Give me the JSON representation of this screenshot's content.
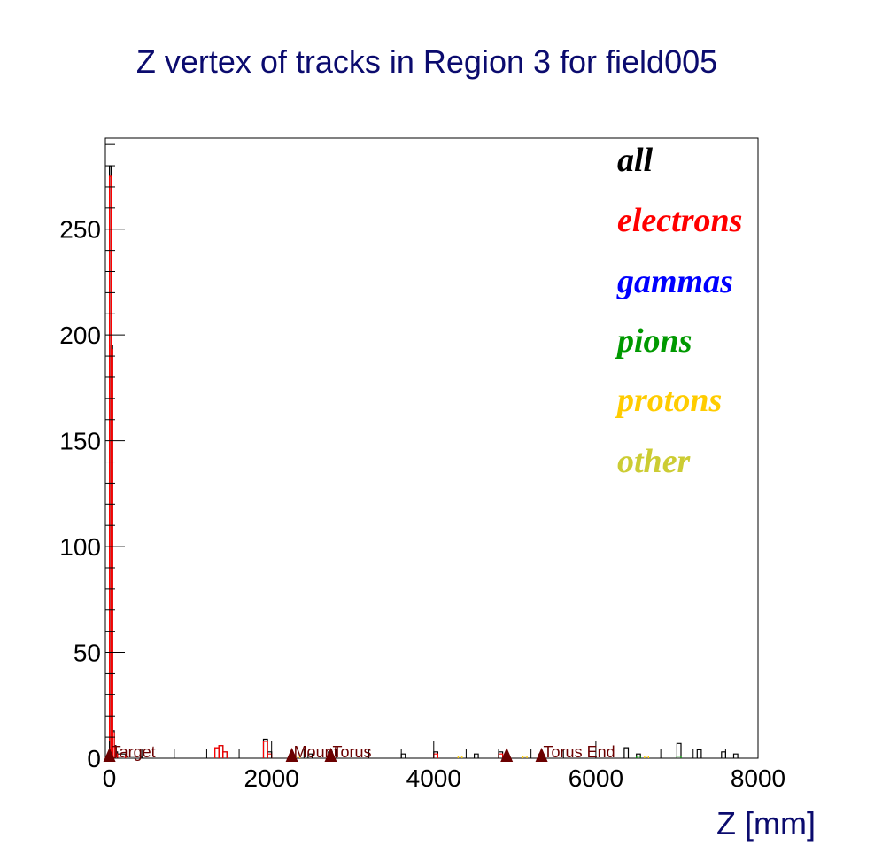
{
  "chart_data": {
    "type": "histogram",
    "title": "Z vertex of tracks in Region 3 for field005",
    "xlabel": "Z [mm]",
    "ylabel": "",
    "xlim": [
      -50,
      8000
    ],
    "ylim": [
      0,
      293
    ],
    "x_ticks": [
      0,
      2000,
      4000,
      6000,
      8000
    ],
    "x_tick_labels": [
      "0",
      "2000",
      "4000",
      "6000",
      "8000"
    ],
    "y_ticks": [
      0,
      50,
      100,
      150,
      200,
      250
    ],
    "y_tick_labels": [
      "0",
      "50",
      "100",
      "150",
      "200",
      "250"
    ],
    "grid": false,
    "legend_position": "top-right",
    "legend": [
      {
        "label": "all",
        "color": "#000000"
      },
      {
        "label": "electrons",
        "color": "#ff0000"
      },
      {
        "label": "gammas",
        "color": "#0000ff"
      },
      {
        "label": "pions",
        "color": "#009900"
      },
      {
        "label": "protons",
        "color": "#ffcc00"
      },
      {
        "label": "other",
        "color": "#cccc33"
      }
    ],
    "series": [
      {
        "name": "all",
        "color": "#000000",
        "bins": [
          [
            -20,
            0,
            2
          ],
          [
            0,
            20,
            280
          ],
          [
            20,
            40,
            195
          ],
          [
            40,
            60,
            13
          ],
          [
            60,
            80,
            6
          ],
          [
            80,
            100,
            3
          ],
          [
            100,
            200,
            2
          ],
          [
            200,
            400,
            1
          ],
          [
            1300,
            1350,
            5
          ],
          [
            1350,
            1400,
            6
          ],
          [
            1400,
            1450,
            3
          ],
          [
            1900,
            1950,
            9
          ],
          [
            1950,
            2000,
            3
          ],
          [
            2450,
            2500,
            2
          ],
          [
            2700,
            2750,
            3
          ],
          [
            3600,
            3650,
            2
          ],
          [
            4000,
            4050,
            3
          ],
          [
            4500,
            4550,
            2
          ],
          [
            4800,
            4850,
            3
          ],
          [
            5300,
            5350,
            2
          ],
          [
            6350,
            6400,
            5
          ],
          [
            6500,
            6550,
            2
          ],
          [
            7000,
            7050,
            7
          ],
          [
            7250,
            7300,
            4
          ],
          [
            7550,
            7600,
            3
          ],
          [
            7700,
            7750,
            2
          ]
        ]
      },
      {
        "name": "electrons",
        "color": "#ff0000",
        "bins": [
          [
            0,
            20,
            275
          ],
          [
            20,
            40,
            193
          ],
          [
            40,
            60,
            12
          ],
          [
            60,
            80,
            5
          ],
          [
            80,
            100,
            2
          ],
          [
            100,
            200,
            1
          ],
          [
            1300,
            1350,
            5
          ],
          [
            1350,
            1400,
            6
          ],
          [
            1400,
            1450,
            3
          ],
          [
            1900,
            1950,
            8
          ],
          [
            1950,
            2000,
            2
          ],
          [
            2700,
            2750,
            2
          ],
          [
            4000,
            4050,
            2
          ],
          [
            4800,
            4850,
            2
          ]
        ]
      },
      {
        "name": "gammas",
        "color": "#0000ff",
        "bins": []
      },
      {
        "name": "pions",
        "color": "#009900",
        "bins": [
          [
            -20,
            0,
            1
          ],
          [
            6500,
            6550,
            1
          ],
          [
            7000,
            7050,
            1
          ]
        ]
      },
      {
        "name": "protons",
        "color": "#ffcc00",
        "bins": [
          [
            0,
            20,
            2
          ],
          [
            20,
            40,
            1
          ],
          [
            2300,
            2350,
            1
          ],
          [
            4300,
            4350,
            1
          ],
          [
            5100,
            5150,
            1
          ],
          [
            6600,
            6650,
            1
          ]
        ]
      },
      {
        "name": "other",
        "color": "#cccc33",
        "bins": []
      }
    ],
    "markers": [
      {
        "label": "Target",
        "x": 0,
        "color": "#6b0000"
      },
      {
        "label": "Mount",
        "x": 2250,
        "color": "#6b0000"
      },
      {
        "label": "Torus",
        "x": 2730,
        "color": "#6b0000"
      },
      {
        "label": "",
        "x": 4900,
        "color": "#6b0000"
      },
      {
        "label": "Torus End",
        "x": 5330,
        "color": "#6b0000"
      }
    ]
  }
}
